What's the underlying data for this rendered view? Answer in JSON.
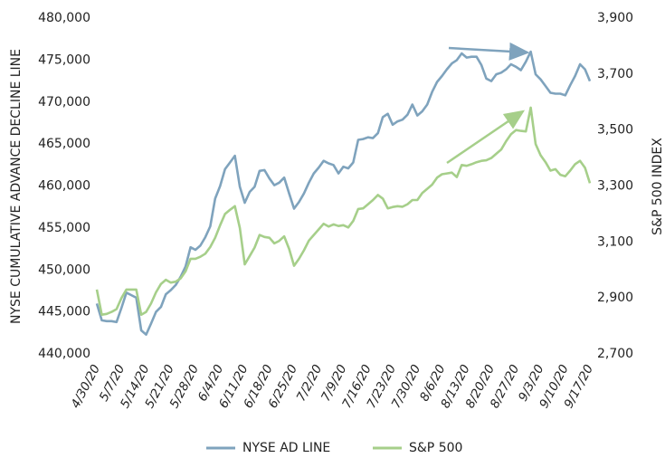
{
  "chart_data": {
    "type": "line",
    "y_label": "NYSE CUMULATIVE ADVANCE DECLINE LINE",
    "y2_label": "S&P 500 INDEX",
    "categories": [
      "4/30/20",
      null,
      null,
      null,
      null,
      "5/7/20",
      null,
      null,
      null,
      null,
      "5/14/20",
      null,
      null,
      null,
      null,
      "5/21/20",
      null,
      null,
      null,
      null,
      "5/28/20",
      null,
      null,
      null,
      null,
      "6/4/20",
      null,
      null,
      null,
      null,
      "6/11/20",
      null,
      null,
      null,
      null,
      "6/18/20",
      null,
      null,
      null,
      null,
      "6/25/20",
      null,
      null,
      null,
      null,
      "7/2/20",
      null,
      null,
      null,
      null,
      "7/9/20",
      null,
      null,
      null,
      null,
      "7/16/20",
      null,
      null,
      null,
      null,
      "7/23/20",
      null,
      null,
      null,
      null,
      "7/30/20",
      null,
      null,
      null,
      null,
      "8/6/20",
      null,
      null,
      null,
      null,
      "8/13/20",
      null,
      null,
      null,
      null,
      "8/20/20",
      null,
      null,
      null,
      null,
      "8/27/20",
      null,
      null,
      null,
      null,
      "9/3/20",
      null,
      null,
      null,
      null,
      "9/10/20",
      null,
      null,
      null,
      null,
      "9/17/20"
    ],
    "series": [
      {
        "name": "NYSE AD LINE",
        "color": "#7fa3bd",
        "axis": "y",
        "values": [
          446000,
          444000,
          443900,
          443900,
          443800,
          445500,
          447300,
          447000,
          446700,
          442800,
          442300,
          443600,
          445000,
          445600,
          447100,
          447600,
          448200,
          449200,
          450400,
          452700,
          452400,
          452900,
          453900,
          455200,
          458500,
          460000,
          462000,
          462800,
          463600,
          459900,
          458000,
          459300,
          459900,
          461800,
          461900,
          460900,
          460100,
          460400,
          461000,
          459100,
          457300,
          458100,
          459100,
          460400,
          461500,
          462200,
          463000,
          462700,
          462500,
          461500,
          462300,
          462100,
          462800,
          465500,
          465600,
          465800,
          465700,
          466300,
          468200,
          468600,
          467300,
          467700,
          467900,
          468500,
          469700,
          468400,
          468900,
          469700,
          471200,
          472400,
          473100,
          473900,
          474600,
          475000,
          475800,
          475300,
          475400,
          475400,
          474400,
          472800,
          472500,
          473300,
          473500,
          473900,
          474500,
          474200,
          473800,
          474800,
          476000,
          473300,
          472700,
          471900,
          471100,
          471000,
          471000,
          470800,
          472000,
          473100,
          474500,
          473900,
          472500
        ]
      },
      {
        "name": "S&P 500",
        "color": "#a6cf8a",
        "axis": "y2",
        "values": [
          2930,
          2840,
          2843,
          2850,
          2860,
          2900,
          2930,
          2930,
          2930,
          2840,
          2850,
          2880,
          2920,
          2950,
          2965,
          2955,
          2958,
          2970,
          2995,
          3040,
          3040,
          3047,
          3058,
          3082,
          3115,
          3160,
          3200,
          3215,
          3228,
          3150,
          3020,
          3050,
          3080,
          3125,
          3118,
          3115,
          3095,
          3104,
          3120,
          3075,
          3015,
          3040,
          3070,
          3105,
          3125,
          3145,
          3165,
          3155,
          3163,
          3157,
          3160,
          3152,
          3175,
          3218,
          3220,
          3235,
          3250,
          3268,
          3255,
          3220,
          3225,
          3228,
          3226,
          3235,
          3250,
          3250,
          3275,
          3290,
          3305,
          3330,
          3342,
          3345,
          3348,
          3332,
          3375,
          3372,
          3378,
          3385,
          3390,
          3392,
          3400,
          3415,
          3430,
          3460,
          3485,
          3500,
          3497,
          3495,
          3580,
          3450,
          3410,
          3385,
          3355,
          3360,
          3340,
          3335,
          3355,
          3378,
          3390,
          3365,
          3310
        ]
      }
    ],
    "ylim": [
      440000,
      480000
    ],
    "yticks": [
      {
        "value": 440000,
        "label": "440,000"
      },
      {
        "value": 445000,
        "label": "445,000"
      },
      {
        "value": 450000,
        "label": "450,000"
      },
      {
        "value": 455000,
        "label": "455,000"
      },
      {
        "value": 460000,
        "label": "460,000"
      },
      {
        "value": 465000,
        "label": "465,000"
      },
      {
        "value": 470000,
        "label": "470,000"
      },
      {
        "value": 475000,
        "label": "475,000"
      },
      {
        "value": 480000,
        "label": "480,000"
      }
    ],
    "y2lim": [
      2700,
      3900
    ],
    "y2ticks": [
      {
        "value": 2700,
        "label": "2,700"
      },
      {
        "value": 2900,
        "label": "2,900"
      },
      {
        "value": 3100,
        "label": "3,100"
      },
      {
        "value": 3300,
        "label": "3,300"
      },
      {
        "value": 3500,
        "label": "3,500"
      },
      {
        "value": 3700,
        "label": "3,700"
      },
      {
        "value": 3900,
        "label": "3,900"
      }
    ],
    "grid": false,
    "legend": "bottom"
  }
}
